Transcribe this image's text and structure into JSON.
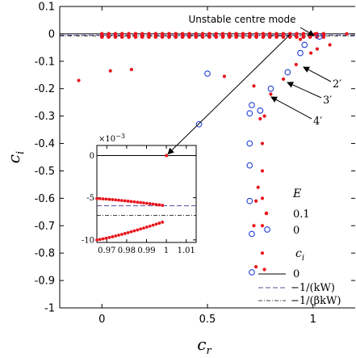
{
  "chart_data": {
    "type": "scatter",
    "xlabel": "c",
    "xlabel_sub": "r",
    "ylabel": "c",
    "ylabel_sub": "i",
    "xlim": [
      -0.2,
      1.2
    ],
    "ylim": [
      -1.0,
      0.1
    ],
    "x_ticks": [
      "0",
      "0.5",
      "1"
    ],
    "y_ticks": [
      "0.1",
      "0",
      "-0.1",
      "-0.2",
      "-0.3",
      "-0.4",
      "-0.5",
      "-0.6",
      "-0.7",
      "-0.8",
      "-0.9",
      "-1"
    ],
    "legend": {
      "title_E": "E",
      "title_ci": "c",
      "title_ci_sub": "i",
      "entries": [
        {
          "label": "0.1",
          "marker": "filled-dot",
          "color": "#e8141c"
        },
        {
          "label": "0",
          "marker": "open-circle",
          "color": "#1f3fd6"
        },
        {
          "label": "0",
          "line": "solid"
        },
        {
          "label": "−1/(kW)",
          "line": "dashed"
        },
        {
          "label": "−1/(βkW)",
          "line": "dashdot"
        }
      ]
    },
    "reference_lines": {
      "solid": 0.0,
      "dashed": -0.005,
      "dashdot": -0.0072
    },
    "series": [
      {
        "name": "0.1",
        "color": "#e8141c",
        "marker": "filled-dot",
        "points": [
          [
            -0.11,
            -0.17
          ],
          [
            0.04,
            -0.135
          ],
          [
            0.14,
            -0.13
          ],
          [
            0.58,
            -0.155
          ],
          [
            0.72,
            -0.19
          ],
          [
            0.77,
            -0.3
          ],
          [
            0.76,
            -0.4
          ],
          [
            0.76,
            -0.5
          ],
          [
            0.76,
            -0.6
          ],
          [
            0.76,
            -0.7
          ],
          [
            0.76,
            -0.8
          ],
          [
            0.77,
            -0.86
          ],
          [
            0.73,
            -0.85
          ],
          [
            0.72,
            -0.7
          ],
          [
            0.73,
            -0.61
          ],
          [
            0.74,
            -0.56
          ],
          [
            0.75,
            -0.31
          ],
          [
            0.8,
            -0.22
          ],
          [
            0.86,
            -0.165
          ],
          [
            0.92,
            -0.112
          ],
          [
            0.99,
            -0.07
          ],
          [
            1.02,
            -0.055
          ],
          [
            1.08,
            -0.04
          ],
          [
            1.16,
            0.0
          ],
          [
            0.94,
            -0.02
          ],
          [
            1.01,
            0.0
          ]
        ],
        "band": {
          "x_start": 0.0,
          "x_end": 1.05,
          "y_top": 0.0,
          "y_bottom": -0.011,
          "count_per_branch": 34
        }
      },
      {
        "name": "0",
        "color": "#1f3fd6",
        "marker": "open-circle",
        "points": [
          [
            0.5,
            -0.145
          ],
          [
            0.46,
            -0.33
          ],
          [
            0.71,
            -0.26
          ],
          [
            0.7,
            -0.29
          ],
          [
            0.7,
            -0.4
          ],
          [
            0.7,
            -0.48
          ],
          [
            0.7,
            -0.61
          ],
          [
            0.71,
            -0.73
          ],
          [
            0.71,
            -0.87
          ],
          [
            0.75,
            -0.28
          ],
          [
            0.8,
            -0.2
          ],
          [
            0.88,
            -0.14
          ],
          [
            0.94,
            -0.07
          ],
          [
            1.03,
            -0.01
          ],
          [
            0.96,
            -0.04
          ]
        ]
      }
    ],
    "inset": {
      "exponent_label": "×10",
      "exponent_power": "−3",
      "xlim": [
        0.965,
        1.015
      ],
      "ylim": [
        -10.3,
        1.2
      ],
      "x_ticks": [
        "0.97",
        "0.98",
        "0.99",
        "1",
        "1.01"
      ],
      "y_ticks": [
        "0",
        "-5",
        "-10"
      ],
      "upper_branch": {
        "x_start": 0.965,
        "x_end": 0.998,
        "y_start": -5.1,
        "y_end": -5.9,
        "count": 22
      },
      "lower_branch": {
        "x_start": 0.965,
        "x_end": 0.998,
        "y_start": -10.0,
        "y_end": -7.9,
        "count": 22
      },
      "isolated_point": [
        1.0,
        0.0
      ],
      "dashed_level": -5.95,
      "dashdot_level": -7.1,
      "solid_level": 0.0
    },
    "annotations": {
      "unstable_label": "Unstable centre mode",
      "mode_labels": [
        "2′",
        "3′",
        "4′"
      ]
    }
  }
}
